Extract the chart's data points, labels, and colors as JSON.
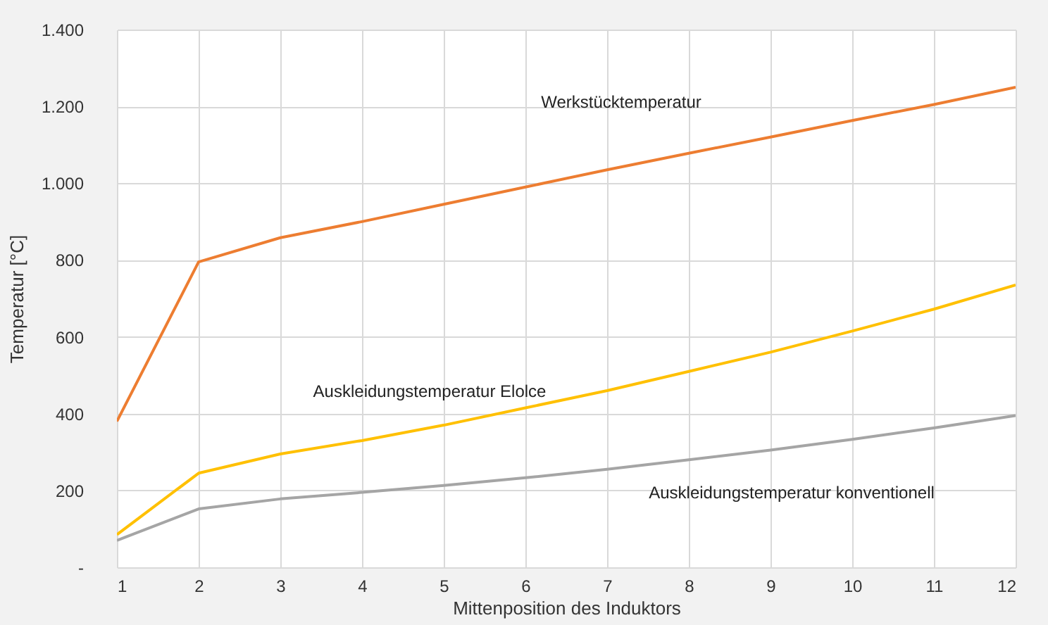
{
  "chart_data": {
    "type": "line",
    "xlabel": "Mittenposition des Induktors",
    "ylabel": "Temperatur [°C]",
    "x": [
      1,
      2,
      3,
      4,
      5,
      6,
      7,
      8,
      9,
      10,
      11,
      12
    ],
    "xlim": [
      1,
      12
    ],
    "xticks": [
      1,
      2,
      3,
      4,
      5,
      6,
      7,
      8,
      9,
      10,
      11,
      12
    ],
    "ylim": [
      0,
      1400
    ],
    "yticks": [
      {
        "value": 0,
        "label": "-"
      },
      {
        "value": 200,
        "label": "200"
      },
      {
        "value": 400,
        "label": "400"
      },
      {
        "value": 600,
        "label": "600"
      },
      {
        "value": 800,
        "label": "800"
      },
      {
        "value": 1000,
        "label": "1.000"
      },
      {
        "value": 1200,
        "label": "1.200"
      },
      {
        "value": 1400,
        "label": "1.400"
      }
    ],
    "grid": true,
    "legend": false,
    "marker": "none",
    "line_style": "solid",
    "series": [
      {
        "name": "Werkstücktemperatur",
        "color": "#ed7d31",
        "values": [
          380,
          795,
          858,
          900,
          945,
          990,
          1035,
          1078,
          1120,
          1163,
          1205,
          1250
        ]
      },
      {
        "name": "Auskleidungstemperatur Elolce",
        "color": "#ffc000",
        "values": [
          85,
          245,
          295,
          330,
          370,
          415,
          460,
          510,
          560,
          615,
          672,
          735
        ]
      },
      {
        "name": "Auskleidungstemperatur konventionell",
        "color": "#a5a5a5",
        "values": [
          70,
          152,
          178,
          195,
          213,
          233,
          255,
          280,
          305,
          333,
          363,
          395
        ]
      }
    ]
  }
}
